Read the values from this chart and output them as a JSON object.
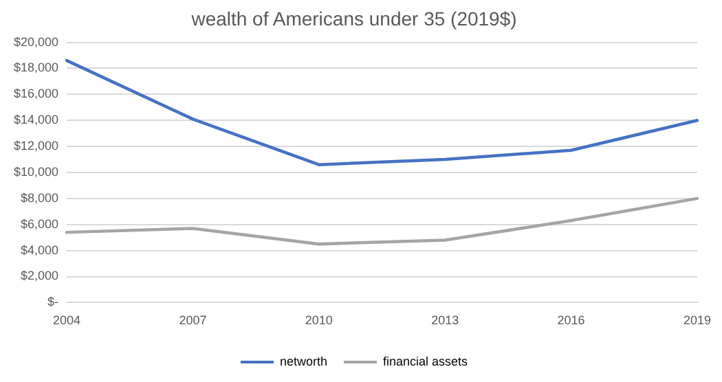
{
  "chart_data": {
    "type": "line",
    "title": "wealth of Americans under 35 (2019$)",
    "categories": [
      "2004",
      "2007",
      "2010",
      "2013",
      "2016",
      "2019"
    ],
    "series": [
      {
        "name": "networth",
        "color": "#4472c4",
        "values": [
          18600,
          14100,
          10600,
          11000,
          11700,
          14000
        ]
      },
      {
        "name": "financial assets",
        "color": "#a5a5a5",
        "values": [
          5400,
          5700,
          4500,
          4800,
          6300,
          8000
        ]
      }
    ],
    "ylim": [
      0,
      20000
    ],
    "yticks": [
      {
        "value": 0,
        "label": "$-"
      },
      {
        "value": 2000,
        "label": "$2,000"
      },
      {
        "value": 4000,
        "label": "$4,000"
      },
      {
        "value": 6000,
        "label": "$6,000"
      },
      {
        "value": 8000,
        "label": "$8,000"
      },
      {
        "value": 10000,
        "label": "$10,000"
      },
      {
        "value": 12000,
        "label": "$12,000"
      },
      {
        "value": 14000,
        "label": "$14,000"
      },
      {
        "value": 16000,
        "label": "$16,000"
      },
      {
        "value": 18000,
        "label": "$18,000"
      },
      {
        "value": 20000,
        "label": "$20,000"
      }
    ],
    "grid": "y",
    "legend": "bottom",
    "marker": "none",
    "line_style": "solid"
  }
}
